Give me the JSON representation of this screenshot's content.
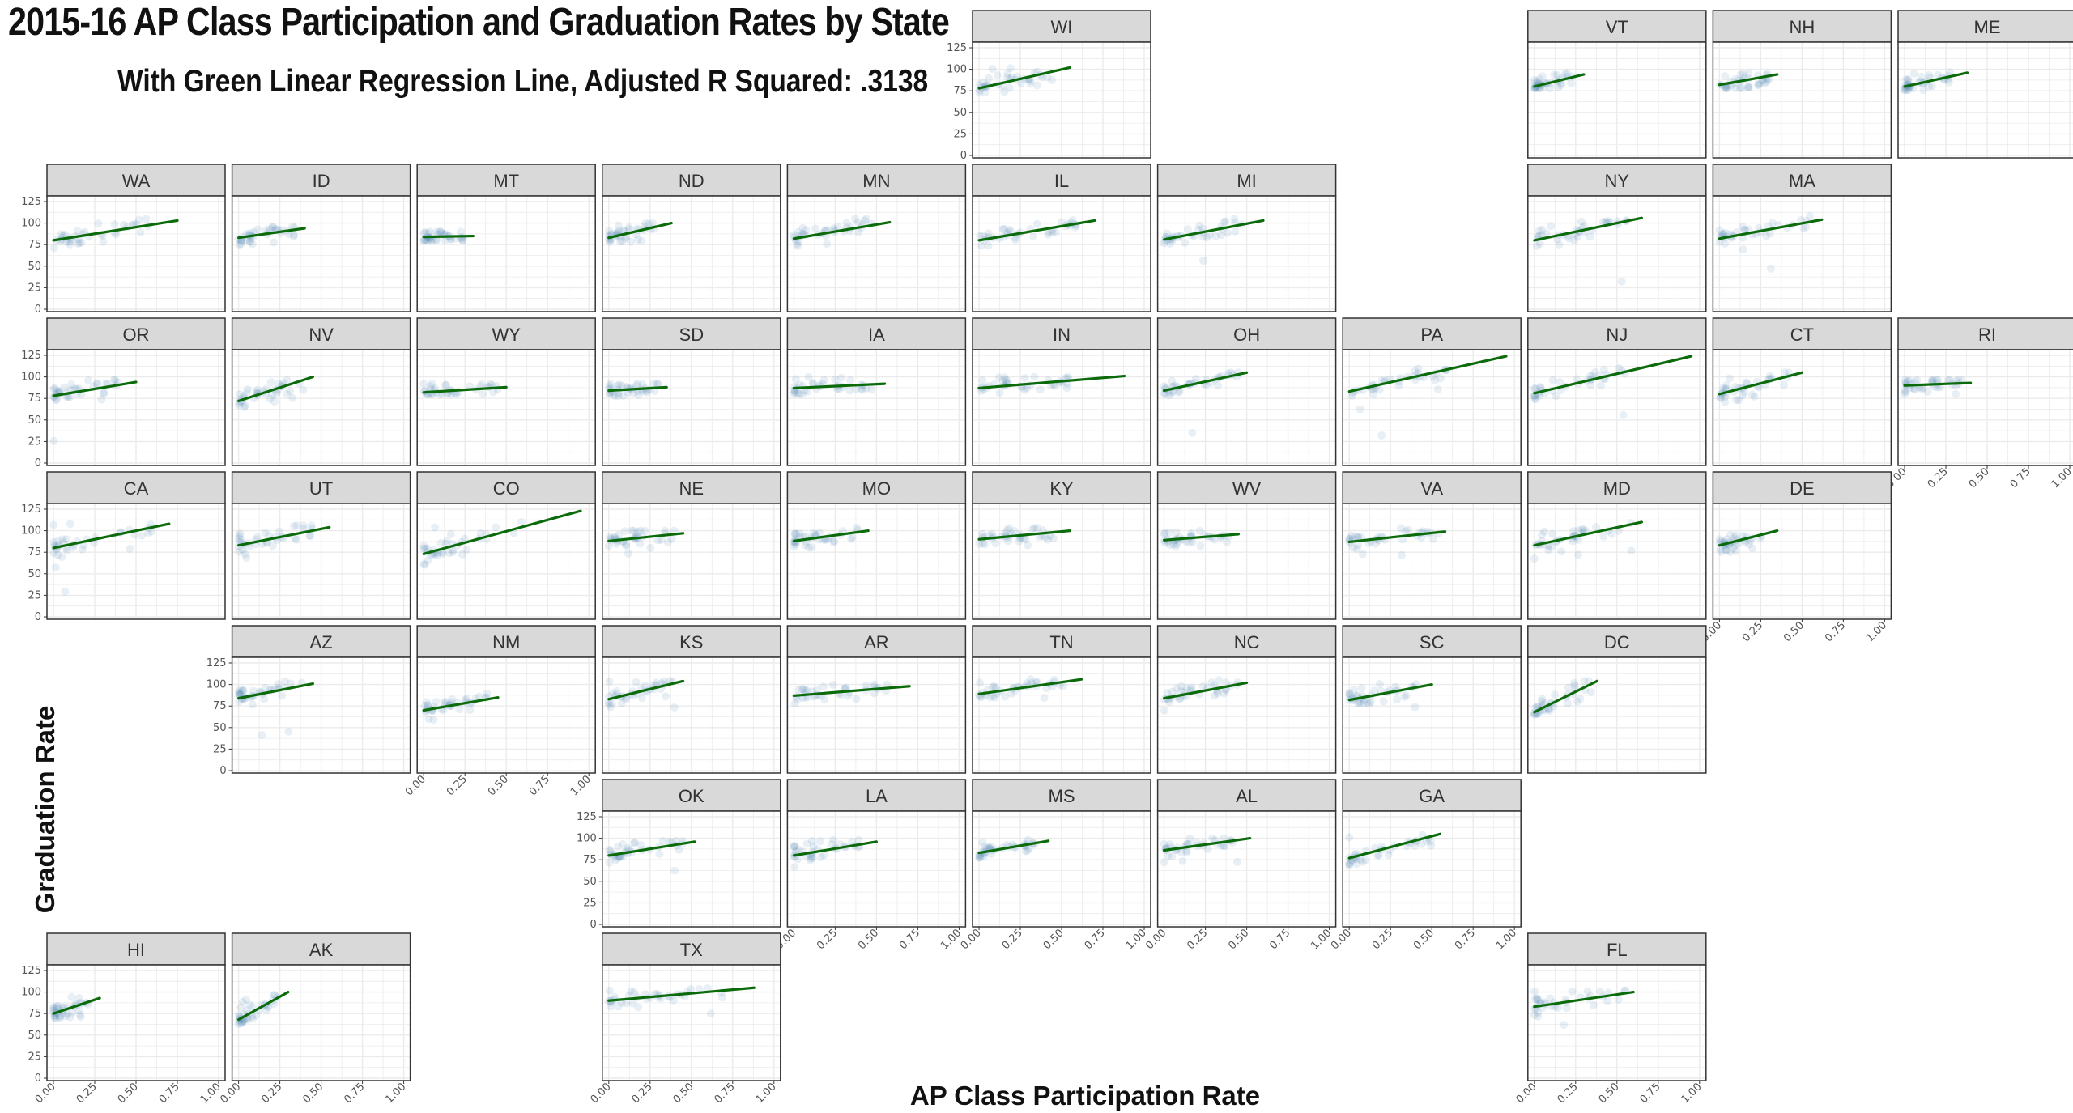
{
  "title": "2015-16 AP Class Participation and Graduation Rates by State",
  "subtitle": "With Green Linear Regression Line, Adjusted R Squared: .3138",
  "colors": {
    "points": "#4f86b5",
    "regression_line": "#0b6b0b",
    "strip_fill": "#d9d9d9",
    "strip_border": "#333333",
    "panel_border": "#333333",
    "grid": "#ebebeb",
    "background": "#ffffff"
  },
  "chart_data": {
    "type": "scatter",
    "layout": "faceted state grid (geofacet)",
    "xlabel": "AP Class Participation Rate",
    "ylabel": "Graduation Rate",
    "xlim": [
      0,
      1
    ],
    "ylim": [
      0,
      125
    ],
    "x_ticks": [
      "0.00",
      "0.25",
      "0.50",
      "0.75",
      "1.00"
    ],
    "y_ticks": [
      "0",
      "25",
      "50",
      "75",
      "100",
      "125"
    ],
    "grid": true,
    "facets": [
      {
        "state": "WI",
        "row": 0,
        "col": 5,
        "x_axis": false,
        "y_axis": true,
        "line": [
          [
            0.0,
            78
          ],
          [
            0.55,
            102
          ]
        ],
        "cloud": [
          0.0,
          0.45,
          70,
          105
        ]
      },
      {
        "state": "VT",
        "row": 0,
        "col": 8,
        "x_axis": false,
        "y_axis": false,
        "line": [
          [
            0.0,
            80
          ],
          [
            0.3,
            94
          ]
        ],
        "cloud": [
          0.0,
          0.25,
          78,
          96
        ]
      },
      {
        "state": "NH",
        "row": 0,
        "col": 9,
        "x_axis": false,
        "y_axis": false,
        "line": [
          [
            0.0,
            82
          ],
          [
            0.35,
            94
          ]
        ],
        "cloud": [
          0.0,
          0.3,
          78,
          98
        ]
      },
      {
        "state": "ME",
        "row": 0,
        "col": 10,
        "x_axis": false,
        "y_axis": false,
        "line": [
          [
            0.0,
            80
          ],
          [
            0.38,
            96
          ]
        ],
        "cloud": [
          0.0,
          0.3,
          76,
          98
        ]
      },
      {
        "state": "WA",
        "row": 1,
        "col": 0,
        "x_axis": false,
        "y_axis": true,
        "line": [
          [
            0.0,
            80
          ],
          [
            0.75,
            103
          ]
        ],
        "cloud": [
          0.0,
          0.6,
          30,
          105
        ]
      },
      {
        "state": "ID",
        "row": 1,
        "col": 1,
        "x_axis": false,
        "y_axis": false,
        "line": [
          [
            0.0,
            83
          ],
          [
            0.4,
            94
          ]
        ],
        "cloud": [
          0.0,
          0.35,
          75,
          96
        ]
      },
      {
        "state": "MT",
        "row": 1,
        "col": 2,
        "x_axis": false,
        "y_axis": false,
        "line": [
          [
            0.0,
            84
          ],
          [
            0.3,
            85
          ]
        ],
        "cloud": [
          0.0,
          0.25,
          80,
          90
        ]
      },
      {
        "state": "ND",
        "row": 1,
        "col": 3,
        "x_axis": false,
        "y_axis": false,
        "line": [
          [
            0.0,
            83
          ],
          [
            0.38,
            100
          ]
        ],
        "cloud": [
          0.0,
          0.3,
          78,
          100
        ]
      },
      {
        "state": "MN",
        "row": 1,
        "col": 4,
        "x_axis": false,
        "y_axis": false,
        "line": [
          [
            0.0,
            82
          ],
          [
            0.58,
            101
          ]
        ],
        "cloud": [
          0.0,
          0.5,
          20,
          105
        ]
      },
      {
        "state": "IL",
        "row": 1,
        "col": 5,
        "x_axis": false,
        "y_axis": false,
        "line": [
          [
            0.0,
            80
          ],
          [
            0.7,
            103
          ]
        ],
        "cloud": [
          0.0,
          0.6,
          50,
          105
        ]
      },
      {
        "state": "MI",
        "row": 1,
        "col": 6,
        "x_axis": false,
        "y_axis": false,
        "line": [
          [
            0.0,
            81
          ],
          [
            0.6,
            103
          ]
        ],
        "cloud": [
          0.0,
          0.5,
          45,
          105
        ]
      },
      {
        "state": "NY",
        "row": 1,
        "col": 8,
        "x_axis": false,
        "y_axis": false,
        "line": [
          [
            0.0,
            80
          ],
          [
            0.65,
            106
          ]
        ],
        "cloud": [
          0.0,
          0.6,
          15,
          108
        ]
      },
      {
        "state": "MA",
        "row": 1,
        "col": 9,
        "x_axis": false,
        "y_axis": false,
        "line": [
          [
            0.0,
            82
          ],
          [
            0.62,
            104
          ]
        ],
        "cloud": [
          0.0,
          0.55,
          10,
          108
        ]
      },
      {
        "state": "OR",
        "row": 2,
        "col": 0,
        "x_axis": false,
        "y_axis": true,
        "line": [
          [
            0.0,
            78
          ],
          [
            0.5,
            94
          ]
        ],
        "cloud": [
          0.0,
          0.4,
          25,
          100
        ]
      },
      {
        "state": "NV",
        "row": 2,
        "col": 1,
        "x_axis": false,
        "y_axis": false,
        "line": [
          [
            0.0,
            72
          ],
          [
            0.45,
            100
          ]
        ],
        "cloud": [
          0.0,
          0.4,
          65,
          100
        ]
      },
      {
        "state": "WY",
        "row": 2,
        "col": 2,
        "x_axis": false,
        "y_axis": false,
        "line": [
          [
            0.0,
            82
          ],
          [
            0.5,
            88
          ]
        ],
        "cloud": [
          0.0,
          0.45,
          80,
          92
        ]
      },
      {
        "state": "SD",
        "row": 2,
        "col": 3,
        "x_axis": false,
        "y_axis": false,
        "line": [
          [
            0.0,
            84
          ],
          [
            0.35,
            88
          ]
        ],
        "cloud": [
          0.0,
          0.3,
          78,
          92
        ]
      },
      {
        "state": "IA",
        "row": 2,
        "col": 4,
        "x_axis": false,
        "y_axis": false,
        "line": [
          [
            0.0,
            87
          ],
          [
            0.55,
            92
          ]
        ],
        "cloud": [
          0.0,
          0.5,
          80,
          100
        ]
      },
      {
        "state": "IN",
        "row": 2,
        "col": 5,
        "x_axis": false,
        "y_axis": false,
        "line": [
          [
            0.0,
            87
          ],
          [
            0.88,
            101
          ]
        ],
        "cloud": [
          0.0,
          0.6,
          70,
          100
        ]
      },
      {
        "state": "OH",
        "row": 2,
        "col": 6,
        "x_axis": false,
        "y_axis": false,
        "line": [
          [
            0.0,
            84
          ],
          [
            0.5,
            105
          ]
        ],
        "cloud": [
          0.0,
          0.45,
          10,
          105
        ]
      },
      {
        "state": "PA",
        "row": 2,
        "col": 7,
        "x_axis": false,
        "y_axis": false,
        "line": [
          [
            0.0,
            83
          ],
          [
            0.95,
            124
          ]
        ],
        "cloud": [
          0.0,
          0.6,
          10,
          110
        ]
      },
      {
        "state": "NJ",
        "row": 2,
        "col": 8,
        "x_axis": false,
        "y_axis": false,
        "line": [
          [
            0.0,
            81
          ],
          [
            0.95,
            124
          ]
        ],
        "cloud": [
          0.0,
          0.6,
          55,
          110
        ]
      },
      {
        "state": "CT",
        "row": 2,
        "col": 9,
        "x_axis": false,
        "y_axis": false,
        "line": [
          [
            0.0,
            80
          ],
          [
            0.5,
            105
          ]
        ],
        "cloud": [
          0.0,
          0.45,
          65,
          105
        ]
      },
      {
        "state": "RI",
        "row": 2,
        "col": 10,
        "x_axis": true,
        "y_axis": false,
        "line": [
          [
            0.0,
            90
          ],
          [
            0.4,
            93
          ]
        ],
        "cloud": [
          0.0,
          0.35,
          80,
          96
        ]
      },
      {
        "state": "CA",
        "row": 3,
        "col": 0,
        "x_axis": false,
        "y_axis": true,
        "line": [
          [
            0.0,
            80
          ],
          [
            0.7,
            108
          ]
        ],
        "cloud": [
          0.0,
          0.6,
          5,
          110
        ]
      },
      {
        "state": "UT",
        "row": 3,
        "col": 1,
        "x_axis": false,
        "y_axis": false,
        "line": [
          [
            0.0,
            83
          ],
          [
            0.55,
            104
          ]
        ],
        "cloud": [
          0.0,
          0.45,
          55,
          106
        ]
      },
      {
        "state": "CO",
        "row": 3,
        "col": 2,
        "x_axis": false,
        "y_axis": false,
        "line": [
          [
            0.0,
            73
          ],
          [
            0.95,
            123
          ]
        ],
        "cloud": [
          0.0,
          0.6,
          35,
          110
        ]
      },
      {
        "state": "NE",
        "row": 3,
        "col": 3,
        "x_axis": false,
        "y_axis": false,
        "line": [
          [
            0.0,
            88
          ],
          [
            0.45,
            97
          ]
        ],
        "cloud": [
          0.0,
          0.4,
          70,
          100
        ]
      },
      {
        "state": "MO",
        "row": 3,
        "col": 4,
        "x_axis": false,
        "y_axis": false,
        "line": [
          [
            0.0,
            88
          ],
          [
            0.45,
            100
          ]
        ],
        "cloud": [
          0.0,
          0.4,
          70,
          105
        ]
      },
      {
        "state": "KY",
        "row": 3,
        "col": 5,
        "x_axis": false,
        "y_axis": false,
        "line": [
          [
            0.0,
            90
          ],
          [
            0.55,
            100
          ]
        ],
        "cloud": [
          0.0,
          0.5,
          80,
          103
        ]
      },
      {
        "state": "WV",
        "row": 3,
        "col": 6,
        "x_axis": false,
        "y_axis": false,
        "line": [
          [
            0.0,
            89
          ],
          [
            0.45,
            96
          ]
        ],
        "cloud": [
          0.0,
          0.4,
          80,
          100
        ]
      },
      {
        "state": "VA",
        "row": 3,
        "col": 7,
        "x_axis": false,
        "y_axis": false,
        "line": [
          [
            0.0,
            87
          ],
          [
            0.58,
            99
          ]
        ],
        "cloud": [
          0.0,
          0.55,
          70,
          103
        ]
      },
      {
        "state": "MD",
        "row": 3,
        "col": 8,
        "x_axis": false,
        "y_axis": false,
        "line": [
          [
            0.0,
            83
          ],
          [
            0.65,
            110
          ]
        ],
        "cloud": [
          0.0,
          0.6,
          65,
          110
        ]
      },
      {
        "state": "DE",
        "row": 3,
        "col": 9,
        "x_axis": true,
        "y_axis": false,
        "line": [
          [
            0.0,
            83
          ],
          [
            0.35,
            100
          ]
        ],
        "cloud": [
          0.0,
          0.3,
          70,
          102
        ]
      },
      {
        "state": "AZ",
        "row": 4,
        "col": 1,
        "x_axis": false,
        "y_axis": true,
        "line": [
          [
            0.0,
            84
          ],
          [
            0.45,
            101
          ]
        ],
        "cloud": [
          0.0,
          0.4,
          15,
          105
        ]
      },
      {
        "state": "NM",
        "row": 4,
        "col": 2,
        "x_axis": true,
        "y_axis": false,
        "line": [
          [
            0.0,
            70
          ],
          [
            0.45,
            85
          ]
        ],
        "cloud": [
          0.0,
          0.4,
          55,
          90
        ]
      },
      {
        "state": "KS",
        "row": 4,
        "col": 3,
        "x_axis": false,
        "y_axis": false,
        "line": [
          [
            0.0,
            83
          ],
          [
            0.45,
            104
          ]
        ],
        "cloud": [
          0.0,
          0.4,
          70,
          104
        ]
      },
      {
        "state": "AR",
        "row": 4,
        "col": 4,
        "x_axis": false,
        "y_axis": false,
        "line": [
          [
            0.0,
            87
          ],
          [
            0.7,
            98
          ]
        ],
        "cloud": [
          0.0,
          0.6,
          75,
          100
        ]
      },
      {
        "state": "TN",
        "row": 4,
        "col": 5,
        "x_axis": false,
        "y_axis": false,
        "line": [
          [
            0.0,
            89
          ],
          [
            0.62,
            106
          ]
        ],
        "cloud": [
          0.0,
          0.55,
          80,
          106
        ]
      },
      {
        "state": "NC",
        "row": 4,
        "col": 6,
        "x_axis": false,
        "y_axis": false,
        "line": [
          [
            0.0,
            84
          ],
          [
            0.5,
            102
          ]
        ],
        "cloud": [
          0.0,
          0.45,
          65,
          105
        ]
      },
      {
        "state": "SC",
        "row": 4,
        "col": 7,
        "x_axis": false,
        "y_axis": false,
        "line": [
          [
            0.0,
            82
          ],
          [
            0.5,
            100
          ]
        ],
        "cloud": [
          0.0,
          0.45,
          65,
          102
        ]
      },
      {
        "state": "DC",
        "row": 4,
        "col": 8,
        "x_axis": false,
        "y_axis": false,
        "line": [
          [
            0.0,
            68
          ],
          [
            0.38,
            104
          ]
        ],
        "cloud": [
          0.0,
          0.35,
          65,
          104
        ]
      },
      {
        "state": "OK",
        "row": 5,
        "col": 3,
        "x_axis": false,
        "y_axis": true,
        "line": [
          [
            0.0,
            80
          ],
          [
            0.52,
            96
          ]
        ],
        "cloud": [
          0.0,
          0.45,
          60,
          100
        ]
      },
      {
        "state": "LA",
        "row": 5,
        "col": 4,
        "x_axis": true,
        "y_axis": false,
        "line": [
          [
            0.0,
            80
          ],
          [
            0.5,
            96
          ]
        ],
        "cloud": [
          0.0,
          0.45,
          60,
          98
        ]
      },
      {
        "state": "MS",
        "row": 5,
        "col": 5,
        "x_axis": true,
        "y_axis": false,
        "line": [
          [
            0.0,
            83
          ],
          [
            0.42,
            97
          ]
        ],
        "cloud": [
          0.0,
          0.35,
          70,
          98
        ]
      },
      {
        "state": "AL",
        "row": 5,
        "col": 6,
        "x_axis": true,
        "y_axis": false,
        "line": [
          [
            0.0,
            86
          ],
          [
            0.52,
            100
          ]
        ],
        "cloud": [
          0.0,
          0.45,
          70,
          100
        ]
      },
      {
        "state": "GA",
        "row": 5,
        "col": 7,
        "x_axis": true,
        "y_axis": false,
        "line": [
          [
            0.0,
            77
          ],
          [
            0.55,
            105
          ]
        ],
        "cloud": [
          0.0,
          0.5,
          0,
          105
        ]
      },
      {
        "state": "HI",
        "row": 6,
        "col": 0,
        "x_axis": true,
        "y_axis": true,
        "line": [
          [
            0.0,
            75
          ],
          [
            0.28,
            93
          ]
        ],
        "cloud": [
          0.0,
          0.25,
          70,
          95
        ]
      },
      {
        "state": "AK",
        "row": 6,
        "col": 1,
        "x_axis": true,
        "y_axis": false,
        "line": [
          [
            0.0,
            68
          ],
          [
            0.3,
            100
          ]
        ],
        "cloud": [
          0.0,
          0.25,
          60,
          100
        ]
      },
      {
        "state": "TX",
        "row": 6,
        "col": 3,
        "x_axis": true,
        "y_axis": false,
        "line": [
          [
            0.0,
            90
          ],
          [
            0.88,
            105
          ]
        ],
        "cloud": [
          0.0,
          0.7,
          65,
          106
        ]
      },
      {
        "state": "FL",
        "row": 6,
        "col": 8,
        "x_axis": true,
        "y_axis": false,
        "line": [
          [
            0.0,
            83
          ],
          [
            0.6,
            100
          ]
        ],
        "cloud": [
          0.0,
          0.55,
          60,
          102
        ]
      }
    ]
  }
}
